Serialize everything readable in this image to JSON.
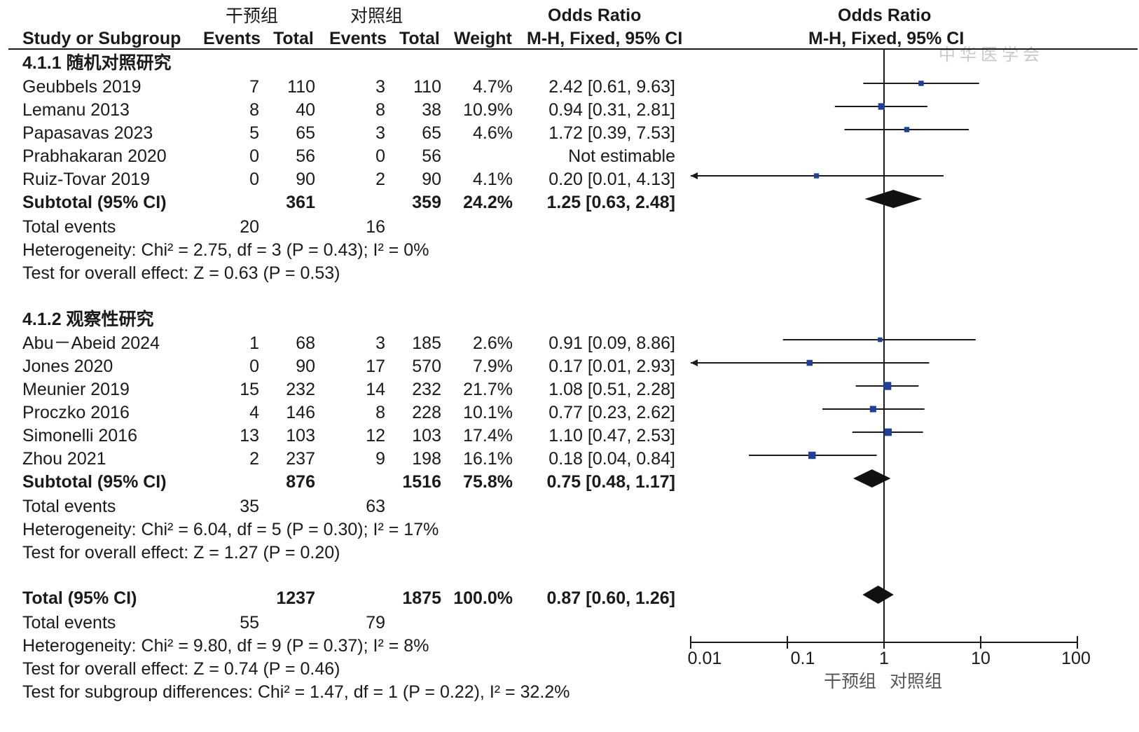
{
  "header": {
    "intervention_group": "干预组",
    "control_group": "对照组",
    "odds_ratio_label": "Odds Ratio",
    "odds_ratio_plot_label": "Odds Ratio",
    "col_study": "Study or Subgroup",
    "col_events_1": "Events",
    "col_total_1": "Total",
    "col_events_2": "Events",
    "col_total_2": "Total",
    "col_weight": "Weight",
    "col_ci": "M-H, Fixed, 95% CI",
    "col_ci_plot": "M-H, Fixed, 95% CI"
  },
  "watermark": "中华医学会",
  "subgroups": [
    {
      "title": "4.1.1 随机对照研究",
      "studies": [
        {
          "name": "Geubbels 2019",
          "e1": "7",
          "t1": "110",
          "e2": "3",
          "t2": "110",
          "weight": "4.7%",
          "ci": "2.42 [0.61, 9.63]"
        },
        {
          "name": "Lemanu 2013",
          "e1": "8",
          "t1": "40",
          "e2": "8",
          "t2": "38",
          "weight": "10.9%",
          "ci": "0.94 [0.31, 2.81]"
        },
        {
          "name": "Papasavas 2023",
          "e1": "5",
          "t1": "65",
          "e2": "3",
          "t2": "65",
          "weight": "4.6%",
          "ci": "1.72 [0.39, 7.53]"
        },
        {
          "name": "Prabhakaran 2020",
          "e1": "0",
          "t1": "56",
          "e2": "0",
          "t2": "56",
          "weight": "",
          "ci": "Not estimable"
        },
        {
          "name": "Ruiz-Tovar 2019",
          "e1": "0",
          "t1": "90",
          "e2": "2",
          "t2": "90",
          "weight": "4.1%",
          "ci": "0.20 [0.01, 4.13]"
        }
      ],
      "subtotal": {
        "label": "Subtotal (95% CI)",
        "t1": "361",
        "t2": "359",
        "weight": "24.2%",
        "ci": "1.25 [0.63, 2.48]"
      },
      "total_events": {
        "label": "Total events",
        "e1": "20",
        "e2": "16"
      },
      "heterogeneity": "Heterogeneity: Chi² = 2.75, df = 3 (P = 0.43); I² = 0%",
      "overall_effect": "Test for overall effect: Z = 0.63 (P = 0.53)"
    },
    {
      "title": "4.1.2 观察性研究",
      "studies": [
        {
          "name": "Abu－Abeid 2024",
          "e1": "1",
          "t1": "68",
          "e2": "3",
          "t2": "185",
          "weight": "2.6%",
          "ci": "0.91 [0.09, 8.86]"
        },
        {
          "name": "Jones 2020",
          "e1": "0",
          "t1": "90",
          "e2": "17",
          "t2": "570",
          "weight": "7.9%",
          "ci": "0.17 [0.01, 2.93]"
        },
        {
          "name": "Meunier 2019",
          "e1": "15",
          "t1": "232",
          "e2": "14",
          "t2": "232",
          "weight": "21.7%",
          "ci": "1.08 [0.51, 2.28]"
        },
        {
          "name": "Proczko 2016",
          "e1": "4",
          "t1": "146",
          "e2": "8",
          "t2": "228",
          "weight": "10.1%",
          "ci": "0.77 [0.23, 2.62]"
        },
        {
          "name": "Simonelli 2016",
          "e1": "13",
          "t1": "103",
          "e2": "12",
          "t2": "103",
          "weight": "17.4%",
          "ci": "1.10 [0.47, 2.53]"
        },
        {
          "name": "Zhou 2021",
          "e1": "2",
          "t1": "237",
          "e2": "9",
          "t2": "198",
          "weight": "16.1%",
          "ci": "0.18 [0.04, 0.84]"
        }
      ],
      "subtotal": {
        "label": "Subtotal (95% CI)",
        "t1": "876",
        "t2": "1516",
        "weight": "75.8%",
        "ci": "0.75 [0.48, 1.17]"
      },
      "total_events": {
        "label": "Total events",
        "e1": "35",
        "e2": "63"
      },
      "heterogeneity": "Heterogeneity: Chi² = 6.04, df = 5 (P = 0.30); I² = 17%",
      "overall_effect": "Test for overall effect: Z = 1.27 (P = 0.20)"
    }
  ],
  "total": {
    "label": "Total (95% CI)",
    "t1": "1237",
    "t2": "1875",
    "weight": "100.0%",
    "ci": "0.87 [0.60, 1.26]"
  },
  "total_events": {
    "label": "Total events",
    "e1": "55",
    "e2": "79"
  },
  "total_heterogeneity": "Heterogeneity: Chi² = 9.80, df = 9 (P = 0.37); I² = 8%",
  "total_overall_effect": "Test for overall effect: Z = 0.74 (P = 0.46)",
  "subgroup_differences": "Test for subgroup differences: Chi² = 1.47, df = 1 (P = 0.22), I² = 32.2%",
  "axis": {
    "tick_labels": [
      "0.01",
      "0.1",
      "1",
      "10",
      "100"
    ],
    "favours_left": "干预组",
    "favours_right": "对照组"
  },
  "colors": {
    "marker": "#1f3f99",
    "ink": "#1a1a1a",
    "diamond": "#111111"
  },
  "chart_data": {
    "type": "forest",
    "title": "Odds Ratio",
    "xlabel": "M-H, Fixed, 95% CI",
    "scale": "log",
    "xlim": [
      0.01,
      100
    ],
    "reference_line": 1,
    "studies": [
      {
        "name": "Geubbels 2019",
        "or": 2.42,
        "lo": 0.61,
        "hi": 9.63,
        "weight": 4.7
      },
      {
        "name": "Lemanu 2013",
        "or": 0.94,
        "lo": 0.31,
        "hi": 2.81,
        "weight": 10.9
      },
      {
        "name": "Papasavas 2023",
        "or": 1.72,
        "lo": 0.39,
        "hi": 7.53,
        "weight": 4.6
      },
      {
        "name": "Prabhakaran 2020",
        "or": null,
        "lo": null,
        "hi": null,
        "weight": null
      },
      {
        "name": "Ruiz-Tovar 2019",
        "or": 0.2,
        "lo": 0.01,
        "hi": 4.13,
        "weight": 4.1
      },
      {
        "name": "Abu－Abeid 2024",
        "or": 0.91,
        "lo": 0.09,
        "hi": 8.86,
        "weight": 2.6
      },
      {
        "name": "Jones 2020",
        "or": 0.17,
        "lo": 0.01,
        "hi": 2.93,
        "weight": 7.9
      },
      {
        "name": "Meunier 2019",
        "or": 1.08,
        "lo": 0.51,
        "hi": 2.28,
        "weight": 21.7
      },
      {
        "name": "Proczko 2016",
        "or": 0.77,
        "lo": 0.23,
        "hi": 2.62,
        "weight": 10.1
      },
      {
        "name": "Simonelli 2016",
        "or": 1.1,
        "lo": 0.47,
        "hi": 2.53,
        "weight": 17.4
      },
      {
        "name": "Zhou 2021",
        "or": 0.18,
        "lo": 0.04,
        "hi": 0.84,
        "weight": 16.1
      }
    ],
    "pooled": [
      {
        "name": "Subtotal 4.1.1",
        "or": 1.25,
        "lo": 0.63,
        "hi": 2.48
      },
      {
        "name": "Subtotal 4.1.2",
        "or": 0.75,
        "lo": 0.48,
        "hi": 1.17
      },
      {
        "name": "Total",
        "or": 0.87,
        "lo": 0.6,
        "hi": 1.26
      }
    ]
  }
}
